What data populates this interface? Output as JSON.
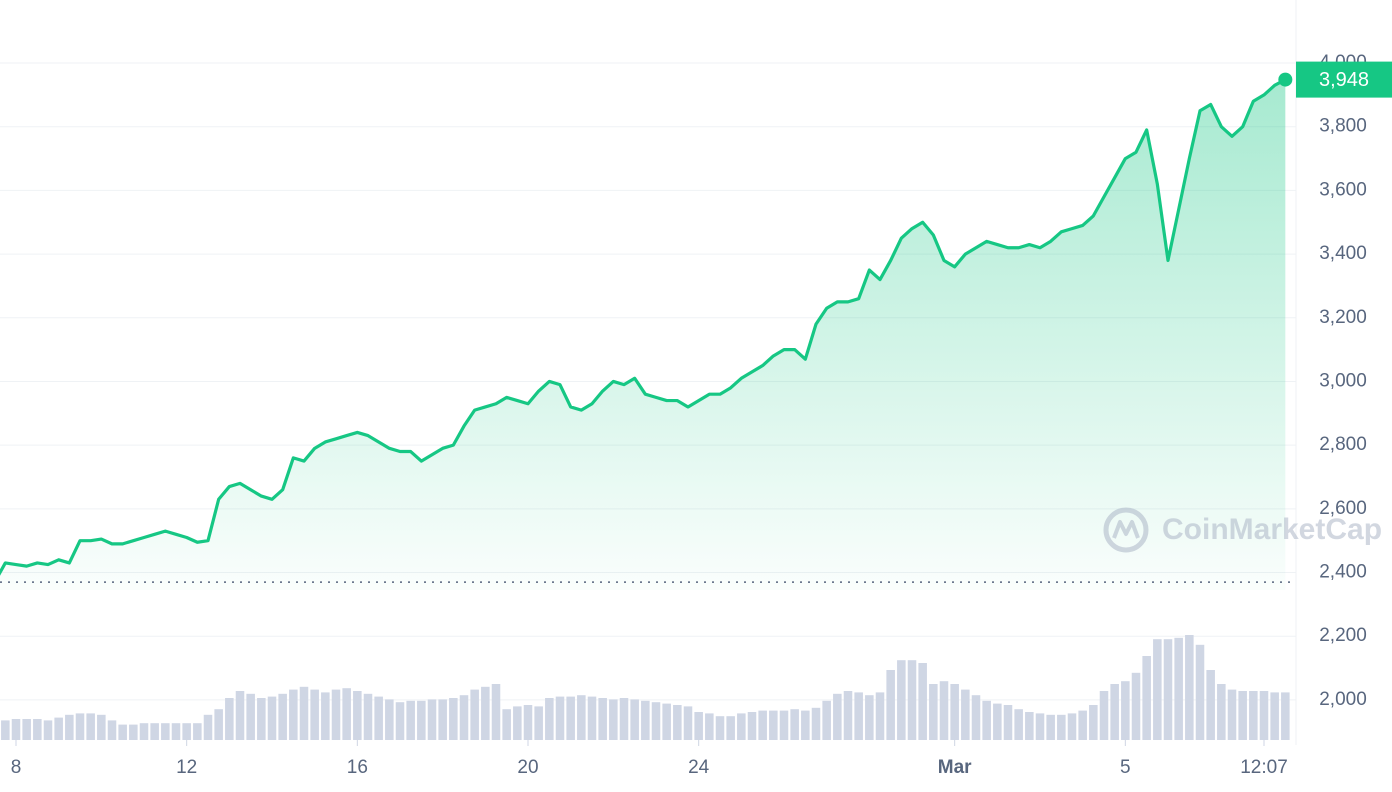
{
  "chart_data": {
    "type": "line",
    "color": "#16c784",
    "values": [
      2370,
      2430,
      2425,
      2420,
      2430,
      2425,
      2440,
      2430,
      2500,
      2500,
      2505,
      2490,
      2490,
      2500,
      2510,
      2520,
      2530,
      2520,
      2510,
      2495,
      2500,
      2630,
      2670,
      2680,
      2660,
      2640,
      2630,
      2660,
      2760,
      2750,
      2790,
      2810,
      2820,
      2830,
      2840,
      2830,
      2810,
      2790,
      2780,
      2780,
      2750,
      2770,
      2790,
      2800,
      2860,
      2910,
      2920,
      2930,
      2950,
      2940,
      2930,
      2970,
      3000,
      2990,
      2920,
      2910,
      2930,
      2970,
      3000,
      2990,
      3010,
      2960,
      2950,
      2940,
      2940,
      2920,
      2940,
      2960,
      2960,
      2980,
      3010,
      3030,
      3050,
      3080,
      3100,
      3100,
      3070,
      3180,
      3230,
      3250,
      3250,
      3260,
      3350,
      3320,
      3380,
      3450,
      3480,
      3500,
      3460,
      3380,
      3360,
      3400,
      3420,
      3440,
      3430,
      3420,
      3420,
      3430,
      3420,
      3440,
      3470,
      3480,
      3490,
      3520,
      3580,
      3640,
      3700,
      3720,
      3790,
      3620,
      3380,
      3540,
      3700,
      3850,
      3870,
      3800,
      3770,
      3800,
      3880,
      3900,
      3930,
      3948
    ],
    "value_labels": [
      null,
      null,
      null,
      null,
      null,
      null,
      null,
      null,
      null,
      null,
      null,
      null,
      null,
      null,
      null,
      null,
      null,
      null,
      null,
      null,
      null,
      null,
      null,
      null,
      null,
      null,
      null,
      null,
      null,
      null,
      null,
      null,
      null,
      null,
      null,
      null,
      null,
      null,
      null,
      null,
      null,
      null,
      null,
      null,
      null,
      null,
      null,
      null,
      null,
      null,
      null,
      null,
      null,
      null,
      null,
      null,
      null,
      null,
      null,
      null,
      null,
      null,
      null,
      null,
      null,
      null,
      null,
      null,
      null,
      null,
      null,
      null,
      null,
      null,
      null,
      null,
      null,
      null,
      null,
      null,
      null,
      null,
      null,
      null,
      null,
      null,
      null,
      null,
      null,
      null,
      null,
      null,
      null,
      null,
      null,
      null,
      null,
      null,
      null,
      null,
      null,
      null,
      null,
      null,
      null,
      null,
      null,
      null,
      null,
      null,
      null,
      null,
      null,
      null,
      null,
      null,
      null,
      null,
      null,
      null,
      null,
      "3,948"
    ],
    "volume_color": "#cfd6e4",
    "volume_values": [
      14,
      14,
      15,
      15,
      15,
      14,
      16,
      18,
      19,
      19,
      18,
      14,
      11,
      11,
      12,
      12,
      12,
      12,
      12,
      12,
      18,
      22,
      30,
      35,
      33,
      30,
      31,
      33,
      36,
      38,
      36,
      34,
      36,
      37,
      35,
      33,
      31,
      29,
      27,
      28,
      28,
      29,
      29,
      30,
      32,
      36,
      38,
      40,
      22,
      24,
      25,
      24,
      30,
      31,
      31,
      32,
      31,
      30,
      29,
      30,
      29,
      28,
      27,
      26,
      25,
      24,
      20,
      19,
      17,
      17,
      19,
      20,
      21,
      21,
      21,
      22,
      21,
      23,
      28,
      33,
      35,
      34,
      32,
      34,
      50,
      57,
      57,
      55,
      40,
      42,
      40,
      36,
      32,
      28,
      26,
      25,
      22,
      20,
      19,
      18,
      18,
      19,
      21,
      25,
      35,
      40,
      42,
      48,
      60,
      72,
      72,
      73,
      75,
      68,
      50,
      40,
      36,
      35,
      35,
      35,
      34,
      34
    ],
    "y2lim": [
      0,
      100
    ],
    "xlim": [
      0.5,
      122
    ],
    "xticks": [
      {
        "value": 2,
        "label": "8"
      },
      {
        "value": 18,
        "label": "12"
      },
      {
        "value": 34,
        "label": "16"
      },
      {
        "value": 50,
        "label": "20"
      },
      {
        "value": 66,
        "label": "24"
      },
      {
        "value": 90,
        "label": "Mar"
      },
      {
        "value": 106,
        "label": "5"
      },
      {
        "value": 119,
        "label": "12:07"
      }
    ],
    "ylim": [
      1874,
      4198
    ],
    "yticks": [
      {
        "value": 2000,
        "label": "2,000"
      },
      {
        "value": 2200,
        "label": "2,200"
      },
      {
        "value": 2400,
        "label": "2,400"
      },
      {
        "value": 2600,
        "label": "2,600"
      },
      {
        "value": 2800,
        "label": "2,800"
      },
      {
        "value": 3000,
        "label": "3,000"
      },
      {
        "value": 3200,
        "label": "3,200"
      },
      {
        "value": 3400,
        "label": "3,400"
      },
      {
        "value": 3600,
        "label": "3,600"
      },
      {
        "value": 3800,
        "label": "3,800"
      },
      {
        "value": 4000,
        "label": "4,000"
      }
    ],
    "grid": true,
    "watermark": "CoinMarketCap"
  }
}
